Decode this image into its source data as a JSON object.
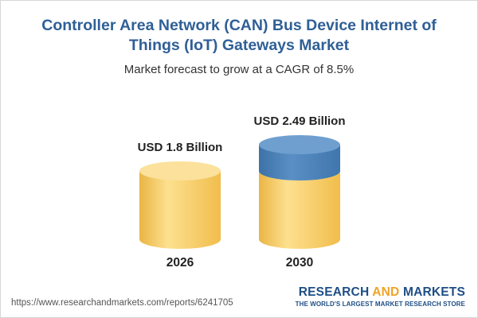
{
  "header": {
    "title": "Controller Area Network (CAN) Bus Device Internet of Things (IoT) Gateways Market",
    "subtitle": "Market forecast to grow at a CAGR of 8.5%"
  },
  "chart_data": {
    "type": "bar",
    "categories": [
      "2026",
      "2030"
    ],
    "values": [
      1.8,
      2.49
    ],
    "value_labels": [
      "USD 1.8 Billion",
      "USD 2.49 Billion"
    ],
    "unit": "USD Billion",
    "cagr": "8.5%",
    "colors": {
      "base_body": "#f7c95a",
      "base_top": "#fbe19b",
      "growth_body": "#4f86bd",
      "growth_top": "#6f9fcf"
    }
  },
  "footer": {
    "source_url": "https://www.researchandmarkets.com/reports/6241705",
    "brand_part1": "RESEARCH ",
    "brand_part2": "AND",
    "brand_part3": " MARKETS",
    "tagline": "THE WORLD'S LARGEST MARKET RESEARCH STORE"
  }
}
